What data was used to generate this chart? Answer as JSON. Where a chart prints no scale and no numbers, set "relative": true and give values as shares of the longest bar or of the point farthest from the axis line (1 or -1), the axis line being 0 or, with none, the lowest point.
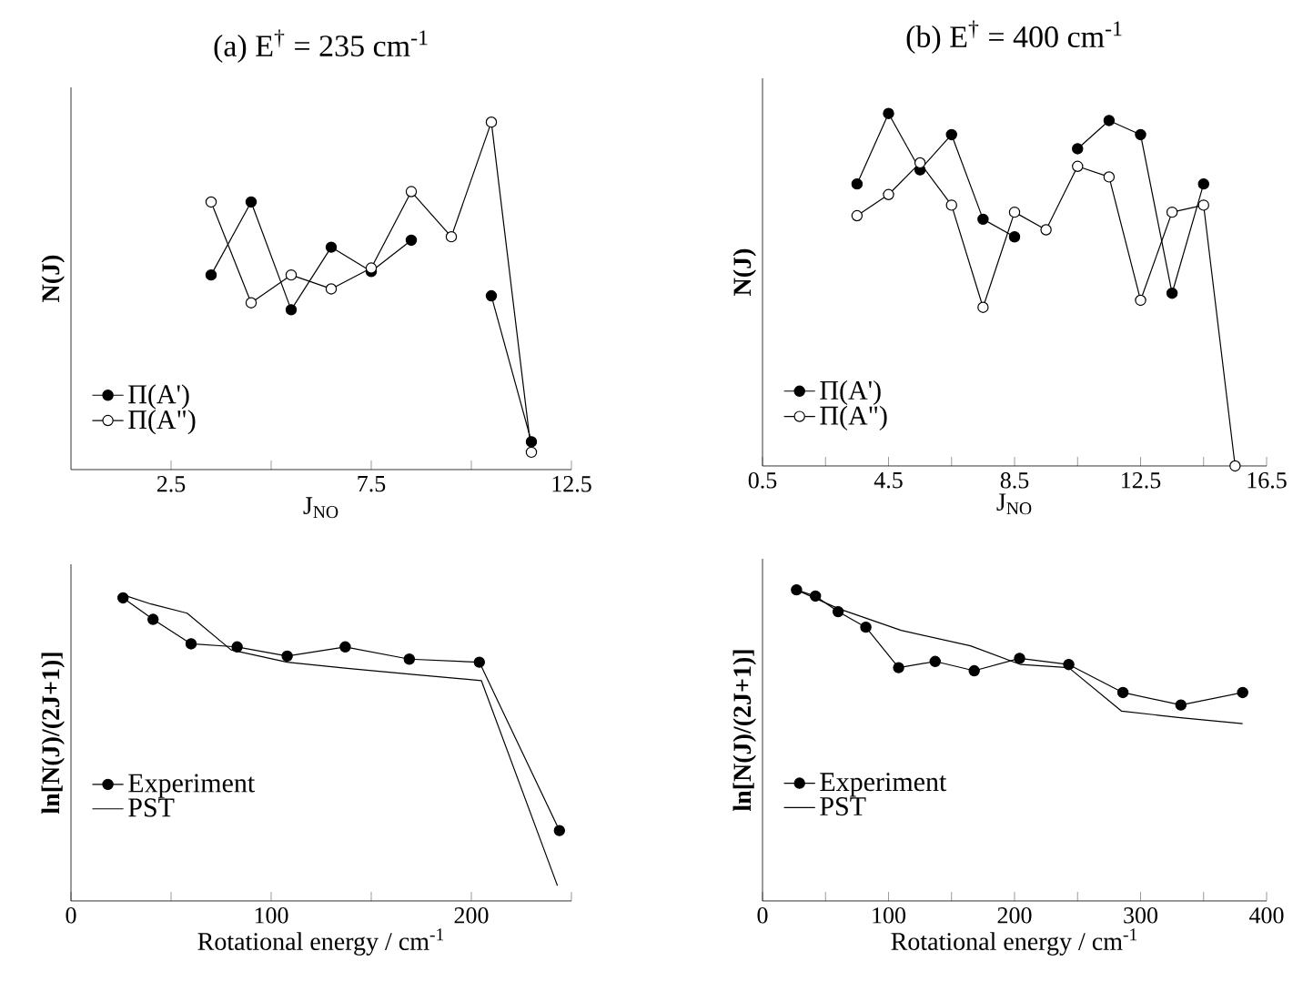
{
  "chart_data": [
    {
      "type": "line",
      "title": "(a) E$^{†}$ = 235 cm$^{-1}$",
      "xlabel": "J$_{NO}$",
      "ylabel": "N(J)",
      "relative": true,
      "tick_labels": "x",
      "legend": "bottom left",
      "marker": "circle",
      "xlim": [
        0,
        12.5
      ],
      "xticks": [
        2.5,
        {
          "value": 5,
          "label": null
        },
        7.5,
        {
          "value": 10,
          "label": null
        },
        12.5
      ],
      "series": [
        {
          "name": "Π(A')",
          "color": "#000000",
          "x": [
            3.5,
            4.5,
            5.5,
            6.5,
            7.5,
            8.5,
            9.5,
            10.5,
            11.5
          ],
          "values": [
            0.56,
            0.77,
            0.46,
            0.64,
            0.57,
            0.66,
            null,
            0.5,
            0.08
          ]
        },
        {
          "name": "Π(A\")",
          "color": "#ffffff",
          "x": [
            3.5,
            4.5,
            5.5,
            6.5,
            7.5,
            8.5,
            9.5,
            10.5,
            11.5
          ],
          "values": [
            0.77,
            0.48,
            0.56,
            0.52,
            0.58,
            0.8,
            0.67,
            1.0,
            0.05
          ]
        }
      ]
    },
    {
      "type": "line",
      "title": "(b) E$^{†}$ = 400 cm$^{-1}$",
      "xlabel": "J$_{NO}$",
      "ylabel": "N(J)",
      "relative": true,
      "tick_labels": "x",
      "legend": "bottom left",
      "marker": "circle",
      "xlim": [
        0.5,
        16.5
      ],
      "xticks": [
        0.5,
        {
          "value": 2.5,
          "label": null
        },
        4.5,
        {
          "value": 6.5,
          "label": null
        },
        8.5,
        {
          "value": 10.5,
          "label": null
        },
        12.5,
        {
          "value": 14.5,
          "label": null
        },
        16.5
      ],
      "series": [
        {
          "name": "Π(A')",
          "color": "#000000",
          "x": [
            3.5,
            4.5,
            5.5,
            6.5,
            7.5,
            8.5,
            9.5,
            10.5,
            11.5,
            12.5,
            13.5,
            14.5
          ],
          "values": [
            0.8,
            1.0,
            0.84,
            0.94,
            0.7,
            0.65,
            null,
            0.9,
            0.98,
            0.94,
            0.49,
            0.8
          ]
        },
        {
          "name": "Π(A\")",
          "color": "#ffffff",
          "x": [
            3.5,
            4.5,
            5.5,
            6.5,
            7.5,
            8.5,
            9.5,
            10.5,
            11.5,
            12.5,
            13.5,
            14.5,
            15.5
          ],
          "values": [
            0.71,
            0.77,
            0.86,
            0.74,
            0.45,
            0.72,
            0.67,
            0.85,
            0.82,
            0.47,
            0.72,
            0.74,
            0
          ]
        }
      ]
    },
    {
      "type": "line",
      "xlabel": "Rotational energy / cm$^{-1}$",
      "ylabel": "ln[N(J)/(2J+1)]",
      "relative": true,
      "tick_labels": "x",
      "legend": "left",
      "xlim": [
        0,
        250
      ],
      "xticks": [
        0,
        {
          "value": 50,
          "label": null
        },
        100,
        {
          "value": 150,
          "label": null
        },
        200,
        {
          "value": 250,
          "label": null
        }
      ],
      "series": [
        {
          "name": "Experiment",
          "color": "#000000",
          "marker": "circle",
          "x": [
            26,
            41,
            60,
            83,
            108,
            137,
            169,
            204,
            244
          ],
          "values": [
            0.99,
            0.92,
            0.84,
            0.83,
            0.8,
            0.83,
            0.79,
            0.78,
            0.23
          ]
        },
        {
          "name": "PST",
          "color": "#000000",
          "marker": "none",
          "x": [
            26,
            40,
            58,
            80,
            108,
            138,
            171,
            205,
            243
          ],
          "values": [
            1.0,
            0.97,
            0.94,
            0.82,
            0.78,
            0.76,
            0.74,
            0.72,
            0.05
          ]
        }
      ]
    },
    {
      "type": "line",
      "xlabel": "Rotational energy / cm$^{-1}$",
      "ylabel": "ln[N(J)/(2J+1)]",
      "relative": true,
      "tick_labels": "x",
      "legend": "left",
      "xlim": [
        0,
        400
      ],
      "xticks": [
        0,
        {
          "value": 50,
          "label": null
        },
        100,
        {
          "value": 150,
          "label": null
        },
        200,
        {
          "value": 250,
          "label": null
        },
        300,
        {
          "value": 350,
          "label": null
        },
        400
      ],
      "series": [
        {
          "name": "Experiment",
          "color": "#000000",
          "marker": "circle",
          "x": [
            27,
            42,
            60,
            82,
            108,
            137,
            168,
            204,
            243,
            286,
            332,
            381
          ],
          "values": [
            1.0,
            0.98,
            0.93,
            0.88,
            0.75,
            0.77,
            0.74,
            0.78,
            0.76,
            0.67,
            0.63,
            0.67
          ]
        },
        {
          "name": "PST",
          "color": "#000000",
          "marker": "none",
          "x": [
            27,
            60,
            110,
            165,
            205,
            243,
            285,
            330,
            381
          ],
          "values": [
            1.0,
            0.94,
            0.87,
            0.82,
            0.76,
            0.75,
            0.61,
            0.59,
            0.57
          ]
        }
      ]
    }
  ]
}
